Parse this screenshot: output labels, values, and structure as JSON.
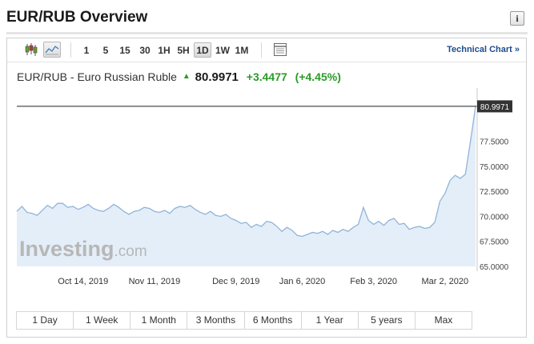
{
  "header": {
    "title": "EUR/RUB Overview",
    "info_icon": "info-icon"
  },
  "toolbar": {
    "icons": [
      "candlestick-icon",
      "line-chart-icon"
    ],
    "intervals": [
      {
        "label": "1",
        "active": false
      },
      {
        "label": "5",
        "active": false
      },
      {
        "label": "15",
        "active": false
      },
      {
        "label": "30",
        "active": false
      },
      {
        "label": "1H",
        "active": false
      },
      {
        "label": "5H",
        "active": false
      },
      {
        "label": "1D",
        "active": true
      },
      {
        "label": "1W",
        "active": false
      },
      {
        "label": "1M",
        "active": false
      }
    ],
    "settings_icon": "table-settings-icon",
    "technical_chart_label": "Technical Chart",
    "technical_chart_arrow": "»"
  },
  "quote": {
    "name": "EUR/RUB - Euro Russian Ruble",
    "direction_icon": "up-arrow-icon",
    "price": "80.9971",
    "change": "+3.4477",
    "change_pct": "(+4.45%)"
  },
  "colors": {
    "line": "#8fb4d9",
    "area": "#e4eef8",
    "up": "#2a9b2a",
    "price_label_bg": "#333333",
    "link": "#1f4c8e"
  },
  "chart_data": {
    "type": "area",
    "series": [
      {
        "values": [
          70.5,
          71.0,
          70.4,
          70.3,
          70.1,
          70.6,
          71.1,
          70.8,
          71.3,
          71.3,
          70.9,
          71.0,
          70.7,
          70.9,
          71.2,
          70.8,
          70.6,
          70.5,
          70.8,
          71.2,
          70.9,
          70.5,
          70.2,
          70.5,
          70.6,
          70.9,
          70.8,
          70.5,
          70.4,
          70.6,
          70.3,
          70.8,
          71.0,
          70.9,
          71.1,
          70.7,
          70.4,
          70.2,
          70.5,
          70.1,
          70.0,
          70.2,
          69.8,
          69.6,
          69.3,
          69.4,
          68.9,
          69.2,
          69.0,
          69.5,
          69.4,
          69.0,
          68.5,
          68.9,
          68.6,
          68.1,
          68.0,
          68.2,
          68.4,
          68.3,
          68.5,
          68.2,
          68.6,
          68.4,
          68.7,
          68.5,
          68.9,
          69.2,
          70.9,
          69.6,
          69.2,
          69.5,
          69.1,
          69.6,
          69.8,
          69.2,
          69.3,
          68.7,
          68.9,
          69.0,
          68.8,
          68.9,
          69.4,
          71.5,
          72.3,
          73.6,
          74.1,
          73.8,
          74.2,
          77.5,
          80.9971
        ]
      }
    ],
    "x_tick_labels": [
      "Oct 14, 2019",
      "Nov 11, 2019",
      "Dec 9, 2019",
      "Jan 6, 2020",
      "Feb 3, 2020",
      "Mar 2, 2020"
    ],
    "x_tick_index": [
      13,
      27,
      43,
      56,
      70,
      84
    ],
    "y_ticks": [
      "65.0000",
      "67.5000",
      "70.0000",
      "72.5000",
      "75.0000",
      "77.5000"
    ],
    "y_tick_values": [
      65,
      67.5,
      70,
      72.5,
      75,
      77.5
    ],
    "ylim": [
      65,
      82.35
    ],
    "last_price_label": "80.9971",
    "last_price": 80.9971,
    "watermark": "Investing.com",
    "grid": false
  },
  "range_buttons": [
    "1 Day",
    "1 Week",
    "1 Month",
    "3 Months",
    "6 Months",
    "1 Year",
    "5 years",
    "Max"
  ]
}
